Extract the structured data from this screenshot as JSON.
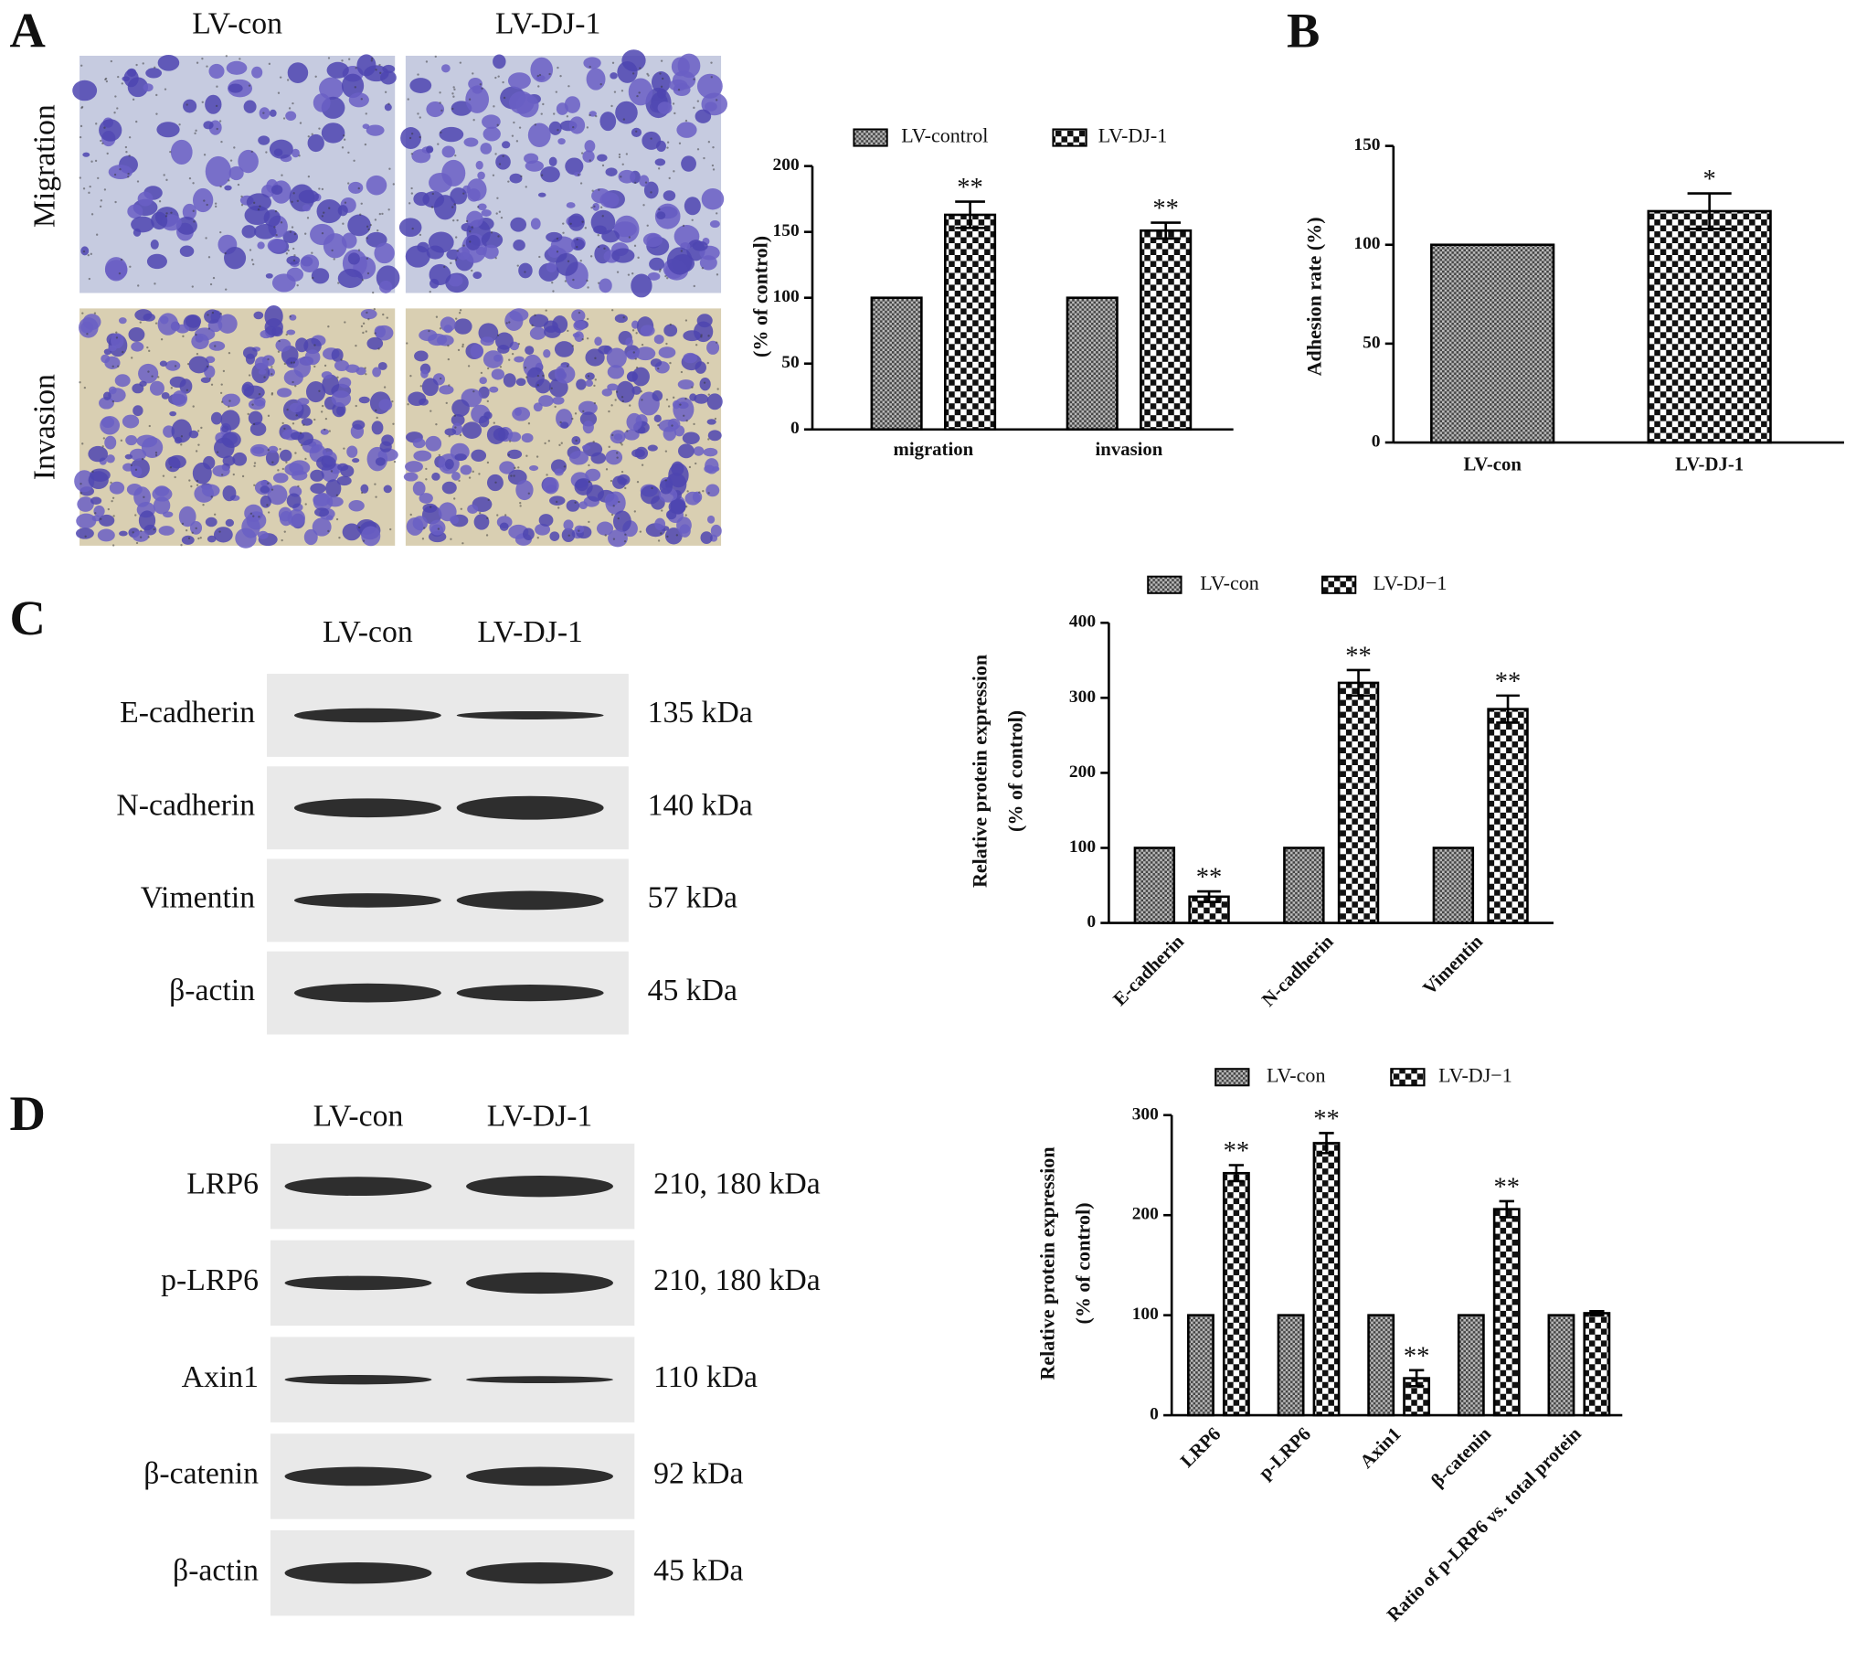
{
  "panel_labels": [
    "A",
    "B",
    "C",
    "D"
  ],
  "microscopy": {
    "columns": [
      "LV-con",
      "LV-DJ-1"
    ],
    "rows": [
      "Migration",
      "Invasion"
    ]
  },
  "blot_c": {
    "lanes": [
      "LV-con",
      "LV-DJ-1"
    ],
    "proteins": [
      "E-cadherin",
      "N-cadherin",
      "Vimentin",
      "β-actin"
    ],
    "sizes": [
      "135  kDa",
      "140  kDa",
      "57  kDa",
      "45  kDa"
    ]
  },
  "blot_d": {
    "lanes": [
      "LV-con",
      "LV-DJ-1"
    ],
    "proteins": [
      "LRP6",
      "p-LRP6",
      "Axin1",
      "β-catenin",
      "β-actin"
    ],
    "sizes": [
      "210, 180  kDa",
      "210, 180  kDa",
      "110  kDa",
      "92  kDa",
      "45  kDa"
    ]
  },
  "chart_data": [
    {
      "type": "bar",
      "ylabel": [
        "(% of control)"
      ],
      "categories": [
        "migration",
        "invasion"
      ],
      "series": [
        {
          "name": "LV-control",
          "values": [
            100,
            100
          ]
        },
        {
          "name": "LV-DJ-1",
          "values": [
            163,
            151
          ],
          "errors": [
            10,
            6
          ],
          "significance": [
            "**",
            "**"
          ]
        }
      ],
      "ylim": [
        0,
        200
      ],
      "yticks": [
        0,
        50,
        100,
        150,
        200
      ]
    },
    {
      "type": "bar",
      "ylabel": [
        "Adhesion rate  (%)"
      ],
      "categories": [
        "LV-con",
        "LV-DJ-1"
      ],
      "values": [
        100,
        117
      ],
      "errors": [
        null,
        9
      ],
      "significance": [
        null,
        "*"
      ],
      "ylim": [
        0,
        150
      ],
      "yticks": [
        0,
        50,
        100,
        150
      ]
    },
    {
      "type": "bar",
      "ylabel": [
        "Relative protein expression",
        "(% of control)"
      ],
      "categories": [
        "E-cadherin",
        "N-cadherin",
        "Vimentin"
      ],
      "series": [
        {
          "name": "LV-con",
          "values": [
            100,
            100,
            100
          ]
        },
        {
          "name": "LV-DJ−1",
          "values": [
            35,
            320,
            285
          ],
          "errors": [
            7,
            17,
            18
          ],
          "significance": [
            "**",
            "**",
            "**"
          ]
        }
      ],
      "ylim": [
        0,
        400
      ],
      "yticks": [
        0,
        100,
        200,
        300,
        400
      ]
    },
    {
      "type": "bar",
      "ylabel": [
        "Relative protein expression",
        "(% of control)"
      ],
      "categories": [
        "LRP6",
        "p-LRP6",
        "Axin1",
        "β-catenin",
        "Ratio of p-LRP6 vs. total protein"
      ],
      "series": [
        {
          "name": "LV-con",
          "values": [
            100,
            100,
            100,
            100,
            100
          ]
        },
        {
          "name": "LV-DJ−1",
          "values": [
            242,
            272,
            37,
            206,
            102
          ],
          "errors": [
            8,
            10,
            8,
            8,
            2
          ],
          "significance": [
            "**",
            "**",
            "**",
            "**",
            null
          ]
        }
      ],
      "ylim": [
        0,
        300
      ],
      "yticks": [
        0,
        100,
        200,
        300
      ]
    }
  ]
}
